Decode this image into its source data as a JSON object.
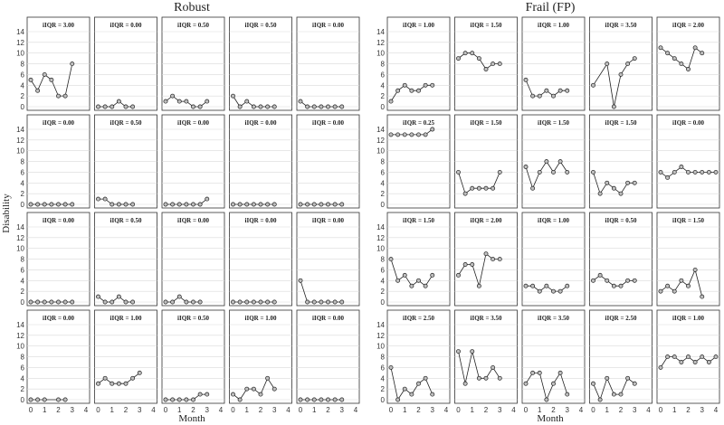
{
  "chart_data": {
    "type": "line",
    "groups": [
      "Robust",
      "Frail (FP)"
    ],
    "xlabel": "Month",
    "ylabel": "Disability",
    "xlim": [
      0,
      4
    ],
    "ylim": [
      0,
      14
    ],
    "xticks": [
      0,
      1,
      2,
      3,
      4
    ],
    "yticks": [
      0,
      2,
      4,
      6,
      8,
      10,
      12,
      14
    ],
    "grid": true,
    "panels": [
      {
        "group": "Robust",
        "row": 0,
        "col": 0,
        "label": "iIQR = 3.00",
        "x": [
          0,
          0.5,
          1,
          1.5,
          2,
          2.5,
          3
        ],
        "y": [
          5,
          3,
          6,
          5,
          2,
          2,
          8
        ]
      },
      {
        "group": "Robust",
        "row": 0,
        "col": 1,
        "label": "iIQR = 0.00",
        "x": [
          0,
          0.5,
          1,
          1.5,
          2,
          2.5
        ],
        "y": [
          0,
          0,
          0,
          1,
          0,
          0
        ]
      },
      {
        "group": "Robust",
        "row": 0,
        "col": 2,
        "label": "iIQR = 0.50",
        "x": [
          0,
          0.5,
          1,
          1.5,
          2,
          2.5,
          3
        ],
        "y": [
          1,
          2,
          1,
          1,
          0,
          0,
          1
        ]
      },
      {
        "group": "Robust",
        "row": 0,
        "col": 3,
        "label": "iIQR = 0.50",
        "x": [
          0,
          0.5,
          1,
          1.5,
          2,
          2.5,
          3
        ],
        "y": [
          2,
          0,
          1,
          0,
          0,
          0,
          0
        ]
      },
      {
        "group": "Robust",
        "row": 0,
        "col": 4,
        "label": "iIQR = 0.00",
        "x": [
          0,
          0.5,
          1,
          1.5,
          2,
          2.5,
          3
        ],
        "y": [
          1,
          0,
          0,
          0,
          0,
          0,
          0
        ]
      },
      {
        "group": "Robust",
        "row": 1,
        "col": 0,
        "label": "iIQR = 0.00",
        "x": [
          0,
          0.5,
          1,
          1.5,
          2,
          2.5,
          3
        ],
        "y": [
          0,
          0,
          0,
          0,
          0,
          0,
          0
        ]
      },
      {
        "group": "Robust",
        "row": 1,
        "col": 1,
        "label": "iIQR = 0.50",
        "x": [
          0,
          0.5,
          1,
          1.5,
          2,
          2.5
        ],
        "y": [
          1,
          1,
          0,
          0,
          0,
          0
        ]
      },
      {
        "group": "Robust",
        "row": 1,
        "col": 2,
        "label": "iIQR = 0.00",
        "x": [
          0,
          0.5,
          1,
          1.5,
          2,
          2.5,
          3
        ],
        "y": [
          0,
          0,
          0,
          0,
          0,
          0,
          1
        ]
      },
      {
        "group": "Robust",
        "row": 1,
        "col": 3,
        "label": "iIQR = 0.00",
        "x": [
          0,
          0.5,
          1,
          1.5,
          2,
          2.5,
          3
        ],
        "y": [
          0,
          0,
          0,
          0,
          0,
          0,
          0
        ]
      },
      {
        "group": "Robust",
        "row": 1,
        "col": 4,
        "label": "iIQR = 0.00",
        "x": [
          0,
          0.5,
          1,
          1.5,
          2,
          2.5,
          3
        ],
        "y": [
          0,
          0,
          0,
          0,
          0,
          0,
          0
        ]
      },
      {
        "group": "Robust",
        "row": 2,
        "col": 0,
        "label": "iIQR = 0.00",
        "x": [
          0,
          0.5,
          1,
          1.5,
          2,
          2.5,
          3
        ],
        "y": [
          0,
          0,
          0,
          0,
          0,
          0,
          0
        ]
      },
      {
        "group": "Robust",
        "row": 2,
        "col": 1,
        "label": "iIQR = 0.50",
        "x": [
          0,
          0.5,
          1,
          1.5,
          2,
          2.5
        ],
        "y": [
          1,
          0,
          0,
          1,
          0,
          0
        ]
      },
      {
        "group": "Robust",
        "row": 2,
        "col": 2,
        "label": "iIQR = 0.00",
        "x": [
          0,
          0.5,
          1,
          1.5,
          2,
          2.5
        ],
        "y": [
          0,
          0,
          1,
          0,
          0,
          0
        ]
      },
      {
        "group": "Robust",
        "row": 2,
        "col": 3,
        "label": "iIQR = 0.00",
        "x": [
          0,
          0.5,
          1,
          1.5,
          2,
          2.5,
          3
        ],
        "y": [
          0,
          0,
          0,
          0,
          0,
          0,
          0
        ]
      },
      {
        "group": "Robust",
        "row": 2,
        "col": 4,
        "label": "iIQR = 0.00",
        "x": [
          0,
          0.5,
          1,
          1.5,
          2,
          2.5,
          3
        ],
        "y": [
          4,
          0,
          0,
          0,
          0,
          0,
          0
        ]
      },
      {
        "group": "Robust",
        "row": 3,
        "col": 0,
        "label": "iIQR = 0.00",
        "x": [
          0,
          0.5,
          1,
          2,
          2.5
        ],
        "y": [
          0,
          0,
          0,
          0,
          0
        ]
      },
      {
        "group": "Robust",
        "row": 3,
        "col": 1,
        "label": "iIQR = 1.00",
        "x": [
          0,
          0.5,
          1,
          1.5,
          2,
          2.5,
          3
        ],
        "y": [
          3,
          4,
          3,
          3,
          3,
          4,
          5
        ]
      },
      {
        "group": "Robust",
        "row": 3,
        "col": 2,
        "label": "iIQR = 0.50",
        "x": [
          0,
          0.5,
          1,
          1.5,
          2,
          2.5,
          3
        ],
        "y": [
          0,
          0,
          0,
          0,
          0,
          1,
          1
        ]
      },
      {
        "group": "Robust",
        "row": 3,
        "col": 3,
        "label": "iIQR = 1.00",
        "x": [
          0,
          0.5,
          1,
          1.5,
          2,
          2.5,
          3
        ],
        "y": [
          1,
          0,
          2,
          2,
          1,
          4,
          2
        ]
      },
      {
        "group": "Robust",
        "row": 3,
        "col": 4,
        "label": "iIQR = 0.00",
        "x": [
          0,
          0.5,
          1,
          1.5,
          2,
          2.5,
          3
        ],
        "y": [
          0,
          0,
          0,
          0,
          0,
          0,
          0
        ]
      },
      {
        "group": "Frail (FP)",
        "row": 0,
        "col": 0,
        "label": "iIQR = 1.00",
        "x": [
          0,
          0.5,
          1,
          1.5,
          2,
          2.5,
          3
        ],
        "y": [
          1,
          3,
          4,
          3,
          3,
          4,
          4
        ]
      },
      {
        "group": "Frail (FP)",
        "row": 0,
        "col": 1,
        "label": "iIQR = 1.50",
        "x": [
          0,
          0.5,
          1,
          1.5,
          2,
          2.5,
          3
        ],
        "y": [
          9,
          10,
          10,
          9,
          7,
          8,
          8
        ]
      },
      {
        "group": "Frail (FP)",
        "row": 0,
        "col": 2,
        "label": "iIQR = 1.00",
        "x": [
          0,
          0.5,
          1,
          1.5,
          2,
          2.5,
          3
        ],
        "y": [
          5,
          2,
          2,
          3,
          2,
          3,
          3
        ]
      },
      {
        "group": "Frail (FP)",
        "row": 0,
        "col": 3,
        "label": "iIQR = 3.50",
        "x": [
          0,
          1,
          1.5,
          2,
          2.5,
          3
        ],
        "y": [
          4,
          8,
          0,
          6,
          8,
          9
        ]
      },
      {
        "group": "Frail (FP)",
        "row": 0,
        "col": 4,
        "label": "iIQR = 2.00",
        "x": [
          0,
          0.5,
          1,
          1.5,
          2,
          2.5,
          3
        ],
        "y": [
          11,
          10,
          9,
          8,
          7,
          11,
          10
        ]
      },
      {
        "group": "Frail (FP)",
        "row": 1,
        "col": 0,
        "label": "iIQR = 0.25",
        "x": [
          0,
          0.5,
          1,
          1.5,
          2,
          2.5,
          3
        ],
        "y": [
          13,
          13,
          13,
          13,
          13,
          13,
          14
        ]
      },
      {
        "group": "Frail (FP)",
        "row": 1,
        "col": 1,
        "label": "iIQR = 1.50",
        "x": [
          0,
          0.5,
          1,
          1.5,
          2,
          2.5,
          3
        ],
        "y": [
          6,
          2,
          3,
          3,
          3,
          3,
          6
        ]
      },
      {
        "group": "Frail (FP)",
        "row": 1,
        "col": 2,
        "label": "iIQR = 1.50",
        "x": [
          0,
          0.5,
          1,
          1.5,
          2,
          2.5,
          3
        ],
        "y": [
          7,
          3,
          6,
          8,
          6,
          8,
          6
        ]
      },
      {
        "group": "Frail (FP)",
        "row": 1,
        "col": 3,
        "label": "iIQR = 1.50",
        "x": [
          0,
          0.5,
          1,
          1.5,
          2,
          2.5,
          3
        ],
        "y": [
          6,
          2,
          4,
          3,
          2,
          4,
          4
        ]
      },
      {
        "group": "Frail (FP)",
        "row": 1,
        "col": 4,
        "label": "iIQR = 0.00",
        "x": [
          0,
          0.5,
          1,
          1.5,
          2,
          2.5,
          3,
          3.5,
          4
        ],
        "y": [
          6,
          5,
          6,
          7,
          6,
          6,
          6,
          6,
          6
        ]
      },
      {
        "group": "Frail (FP)",
        "row": 2,
        "col": 0,
        "label": "iIQR = 1.50",
        "x": [
          0,
          0.5,
          1,
          1.5,
          2,
          2.5,
          3
        ],
        "y": [
          8,
          4,
          5,
          3,
          4,
          3,
          5
        ]
      },
      {
        "group": "Frail (FP)",
        "row": 2,
        "col": 1,
        "label": "iIQR = 2.00",
        "x": [
          0,
          0.5,
          1,
          1.5,
          2,
          2.5,
          3
        ],
        "y": [
          5,
          7,
          7,
          3,
          9,
          8,
          8
        ]
      },
      {
        "group": "Frail (FP)",
        "row": 2,
        "col": 2,
        "label": "iIQR = 1.00",
        "x": [
          0,
          0.5,
          1,
          1.5,
          2,
          2.5,
          3
        ],
        "y": [
          3,
          3,
          2,
          3,
          2,
          2,
          3
        ]
      },
      {
        "group": "Frail (FP)",
        "row": 2,
        "col": 3,
        "label": "iIQR = 0.50",
        "x": [
          0,
          0.5,
          1,
          1.5,
          2,
          2.5,
          3
        ],
        "y": [
          4,
          5,
          4,
          3,
          3,
          4,
          4
        ]
      },
      {
        "group": "Frail (FP)",
        "row": 2,
        "col": 4,
        "label": "iIQR = 1.50",
        "x": [
          0,
          0.5,
          1,
          1.5,
          2,
          2.5,
          3
        ],
        "y": [
          2,
          3,
          2,
          4,
          3,
          6,
          1
        ]
      },
      {
        "group": "Frail (FP)",
        "row": 3,
        "col": 0,
        "label": "iIQR = 2.50",
        "x": [
          0,
          0.5,
          1,
          1.5,
          2,
          2.5,
          3
        ],
        "y": [
          6,
          0,
          2,
          1,
          3,
          4,
          1
        ]
      },
      {
        "group": "Frail (FP)",
        "row": 3,
        "col": 1,
        "label": "iIQR = 3.50",
        "x": [
          0,
          0.5,
          1,
          1.5,
          2,
          2.5,
          3
        ],
        "y": [
          9,
          3,
          9,
          4,
          4,
          6,
          4
        ]
      },
      {
        "group": "Frail (FP)",
        "row": 3,
        "col": 2,
        "label": "iIQR = 3.50",
        "x": [
          0,
          0.5,
          1,
          1.5,
          2,
          2.5,
          3
        ],
        "y": [
          3,
          5,
          5,
          0,
          3,
          5,
          1
        ]
      },
      {
        "group": "Frail (FP)",
        "row": 3,
        "col": 3,
        "label": "iIQR = 2.50",
        "x": [
          0,
          0.5,
          1,
          1.5,
          2,
          2.5,
          3
        ],
        "y": [
          3,
          0,
          4,
          1,
          1,
          4,
          3
        ]
      },
      {
        "group": "Frail (FP)",
        "row": 3,
        "col": 4,
        "label": "iIQR = 1.00",
        "x": [
          0,
          0.5,
          1,
          1.5,
          2,
          2.5,
          3,
          3.5,
          4
        ],
        "y": [
          6,
          8,
          8,
          7,
          8,
          7,
          8,
          7,
          8
        ]
      }
    ]
  }
}
